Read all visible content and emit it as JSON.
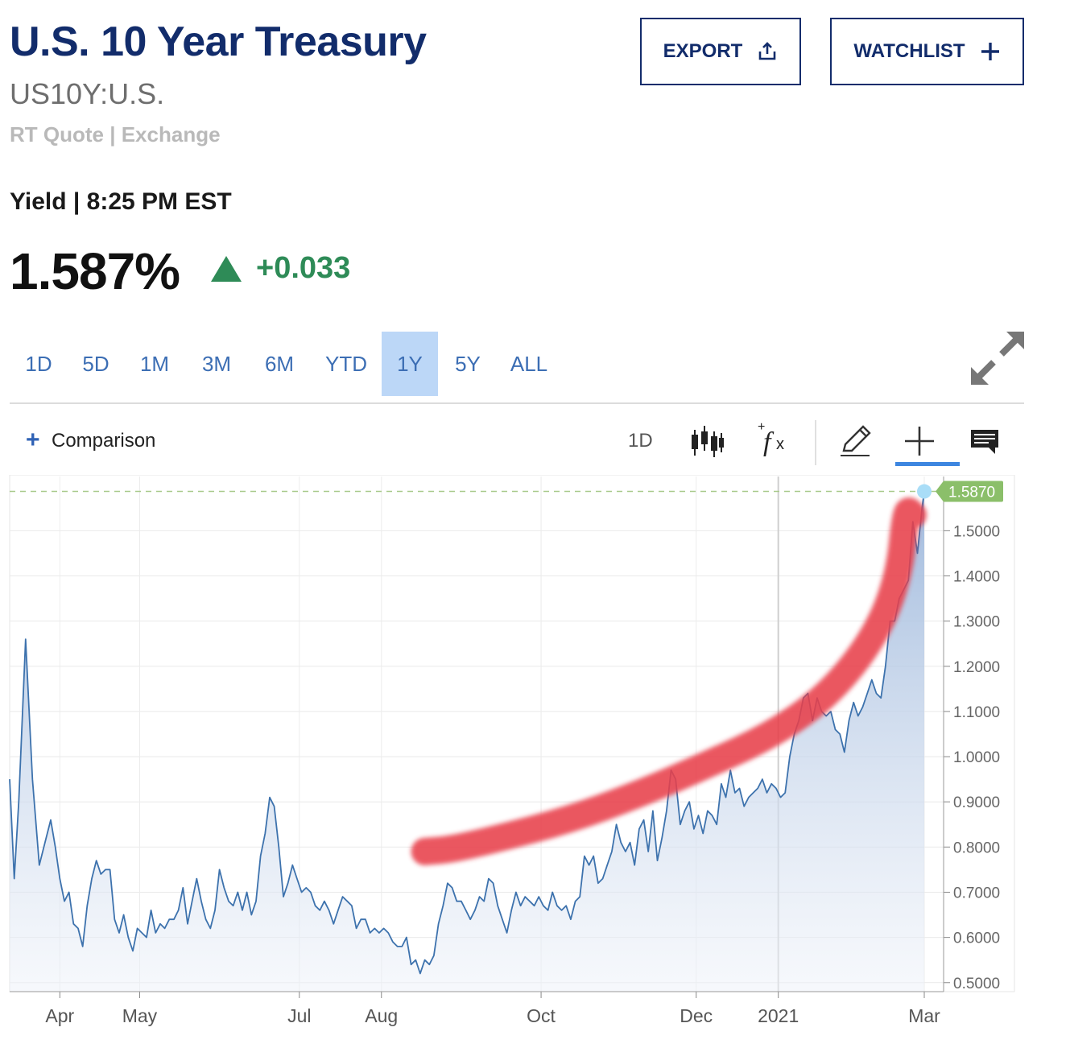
{
  "header": {
    "title": "U.S. 10 Year Treasury",
    "symbol": "US10Y:U.S.",
    "quote_source": "RT Quote | Exchange",
    "yield_label": "Yield | 8:25 PM EST",
    "price": "1.587%",
    "change": "+0.033",
    "change_color": "#2e8b57"
  },
  "buttons": {
    "export": "EXPORT",
    "watchlist": "WATCHLIST"
  },
  "tabs": [
    {
      "label": "1D",
      "active": false
    },
    {
      "label": "5D",
      "active": false
    },
    {
      "label": "1M",
      "active": false
    },
    {
      "label": "3M",
      "active": false
    },
    {
      "label": "6M",
      "active": false
    },
    {
      "label": "YTD",
      "active": false
    },
    {
      "label": "1Y",
      "active": true
    },
    {
      "label": "5Y",
      "active": false
    },
    {
      "label": "ALL",
      "active": false
    }
  ],
  "toolbar": {
    "comparison_label": "Comparison",
    "interval_label": "1D",
    "icons": [
      "candlestick-icon",
      "function-icon",
      "pencil-icon",
      "crosshair-icon",
      "comment-icon"
    ]
  },
  "colors": {
    "title": "#122c6b",
    "line": "#3d72ad",
    "annotation": "#e8404b",
    "last_value_badge": "#8bbf6a",
    "active_tab": "#bcd7f7"
  },
  "chart_data": {
    "type": "area",
    "series": [
      {
        "values": [
          [
            0,
            0.95
          ],
          [
            2,
            0.73
          ],
          [
            4,
            0.9
          ],
          [
            7,
            1.26
          ],
          [
            10,
            0.95
          ],
          [
            13,
            0.76
          ],
          [
            16,
            0.82
          ],
          [
            18,
            0.86
          ],
          [
            20,
            0.8
          ],
          [
            22,
            0.73
          ],
          [
            24,
            0.68
          ],
          [
            26,
            0.7
          ],
          [
            28,
            0.63
          ],
          [
            30,
            0.62
          ],
          [
            32,
            0.58
          ],
          [
            34,
            0.67
          ],
          [
            36,
            0.73
          ],
          [
            38,
            0.77
          ],
          [
            40,
            0.74
          ],
          [
            42,
            0.75
          ],
          [
            44,
            0.75
          ],
          [
            46,
            0.64
          ],
          [
            48,
            0.61
          ],
          [
            50,
            0.65
          ],
          [
            52,
            0.6
          ],
          [
            54,
            0.57
          ],
          [
            56,
            0.62
          ],
          [
            58,
            0.61
          ],
          [
            60,
            0.6
          ],
          [
            62,
            0.66
          ],
          [
            64,
            0.61
          ],
          [
            66,
            0.63
          ],
          [
            68,
            0.62
          ],
          [
            70,
            0.64
          ],
          [
            72,
            0.64
          ],
          [
            74,
            0.66
          ],
          [
            76,
            0.71
          ],
          [
            78,
            0.63
          ],
          [
            80,
            0.68
          ],
          [
            82,
            0.73
          ],
          [
            84,
            0.68
          ],
          [
            86,
            0.64
          ],
          [
            88,
            0.62
          ],
          [
            90,
            0.66
          ],
          [
            92,
            0.75
          ],
          [
            94,
            0.71
          ],
          [
            96,
            0.68
          ],
          [
            98,
            0.67
          ],
          [
            100,
            0.7
          ],
          [
            102,
            0.66
          ],
          [
            104,
            0.7
          ],
          [
            106,
            0.65
          ],
          [
            108,
            0.68
          ],
          [
            110,
            0.78
          ],
          [
            112,
            0.83
          ],
          [
            114,
            0.91
          ],
          [
            116,
            0.89
          ],
          [
            118,
            0.8
          ],
          [
            120,
            0.69
          ],
          [
            122,
            0.72
          ],
          [
            124,
            0.76
          ],
          [
            126,
            0.73
          ],
          [
            128,
            0.7
          ],
          [
            130,
            0.71
          ],
          [
            132,
            0.7
          ],
          [
            134,
            0.67
          ],
          [
            136,
            0.66
          ],
          [
            138,
            0.68
          ],
          [
            140,
            0.66
          ],
          [
            142,
            0.63
          ],
          [
            144,
            0.66
          ],
          [
            146,
            0.69
          ],
          [
            148,
            0.68
          ],
          [
            150,
            0.67
          ],
          [
            152,
            0.62
          ],
          [
            154,
            0.64
          ],
          [
            156,
            0.64
          ],
          [
            158,
            0.61
          ],
          [
            160,
            0.62
          ],
          [
            162,
            0.61
          ],
          [
            164,
            0.62
          ],
          [
            166,
            0.61
          ],
          [
            168,
            0.59
          ],
          [
            170,
            0.58
          ],
          [
            172,
            0.58
          ],
          [
            174,
            0.6
          ],
          [
            176,
            0.54
          ],
          [
            178,
            0.55
          ],
          [
            180,
            0.52
          ],
          [
            182,
            0.55
          ],
          [
            184,
            0.54
          ],
          [
            186,
            0.56
          ],
          [
            188,
            0.63
          ],
          [
            190,
            0.67
          ],
          [
            192,
            0.72
          ],
          [
            194,
            0.71
          ],
          [
            196,
            0.68
          ],
          [
            198,
            0.68
          ],
          [
            200,
            0.66
          ],
          [
            202,
            0.64
          ],
          [
            204,
            0.66
          ],
          [
            206,
            0.69
          ],
          [
            208,
            0.68
          ],
          [
            210,
            0.73
          ],
          [
            212,
            0.72
          ],
          [
            214,
            0.67
          ],
          [
            216,
            0.64
          ],
          [
            218,
            0.61
          ],
          [
            220,
            0.66
          ],
          [
            222,
            0.7
          ],
          [
            224,
            0.67
          ],
          [
            226,
            0.69
          ],
          [
            228,
            0.68
          ],
          [
            230,
            0.67
          ],
          [
            232,
            0.69
          ],
          [
            234,
            0.67
          ],
          [
            236,
            0.66
          ],
          [
            238,
            0.7
          ],
          [
            240,
            0.67
          ],
          [
            242,
            0.66
          ],
          [
            244,
            0.67
          ],
          [
            246,
            0.64
          ],
          [
            248,
            0.68
          ],
          [
            250,
            0.69
          ],
          [
            252,
            0.78
          ],
          [
            254,
            0.76
          ],
          [
            256,
            0.78
          ],
          [
            258,
            0.72
          ],
          [
            260,
            0.73
          ],
          [
            262,
            0.76
          ],
          [
            264,
            0.79
          ],
          [
            266,
            0.85
          ],
          [
            268,
            0.81
          ],
          [
            270,
            0.79
          ],
          [
            272,
            0.81
          ],
          [
            274,
            0.76
          ],
          [
            276,
            0.84
          ],
          [
            278,
            0.86
          ],
          [
            280,
            0.79
          ],
          [
            282,
            0.88
          ],
          [
            284,
            0.77
          ],
          [
            286,
            0.82
          ],
          [
            288,
            0.88
          ],
          [
            290,
            0.97
          ],
          [
            292,
            0.95
          ],
          [
            294,
            0.85
          ],
          [
            296,
            0.88
          ],
          [
            298,
            0.9
          ],
          [
            300,
            0.84
          ],
          [
            302,
            0.87
          ],
          [
            304,
            0.83
          ],
          [
            306,
            0.88
          ],
          [
            308,
            0.87
          ],
          [
            310,
            0.85
          ],
          [
            312,
            0.94
          ],
          [
            314,
            0.91
          ],
          [
            316,
            0.97
          ],
          [
            318,
            0.92
          ],
          [
            320,
            0.93
          ],
          [
            322,
            0.89
          ],
          [
            324,
            0.91
          ],
          [
            326,
            0.92
          ],
          [
            328,
            0.93
          ],
          [
            330,
            0.95
          ],
          [
            332,
            0.92
          ],
          [
            334,
            0.94
          ],
          [
            336,
            0.93
          ],
          [
            338,
            0.91
          ],
          [
            340,
            0.92
          ],
          [
            342,
            1.0
          ],
          [
            344,
            1.05
          ],
          [
            346,
            1.08
          ],
          [
            348,
            1.13
          ],
          [
            350,
            1.14
          ],
          [
            352,
            1.08
          ],
          [
            354,
            1.13
          ],
          [
            356,
            1.1
          ],
          [
            358,
            1.09
          ],
          [
            360,
            1.1
          ],
          [
            362,
            1.06
          ],
          [
            364,
            1.05
          ],
          [
            366,
            1.01
          ],
          [
            368,
            1.08
          ],
          [
            370,
            1.12
          ],
          [
            372,
            1.09
          ],
          [
            374,
            1.11
          ],
          [
            376,
            1.14
          ],
          [
            378,
            1.17
          ],
          [
            380,
            1.14
          ],
          [
            382,
            1.13
          ],
          [
            384,
            1.2
          ],
          [
            386,
            1.3
          ],
          [
            388,
            1.3
          ],
          [
            390,
            1.35
          ],
          [
            392,
            1.37
          ],
          [
            394,
            1.39
          ],
          [
            396,
            1.52
          ],
          [
            398,
            1.45
          ],
          [
            400,
            1.55
          ],
          [
            401,
            1.587
          ]
        ]
      }
    ],
    "x_ticks": [
      "Apr",
      "May",
      "Jul",
      "Aug",
      "Oct",
      "Dec",
      "2021",
      "Mar"
    ],
    "y_ticks": [
      "1.5000",
      "1.4000",
      "1.3000",
      "1.2000",
      "1.1000",
      "1.0000",
      "0.9000",
      "0.8000",
      "0.7000",
      "0.6000",
      "0.5000"
    ],
    "ylim": [
      0.48,
      1.62
    ],
    "last_value": "1.5870",
    "grid": true,
    "annotation": "hand-drawn red upward curve"
  }
}
